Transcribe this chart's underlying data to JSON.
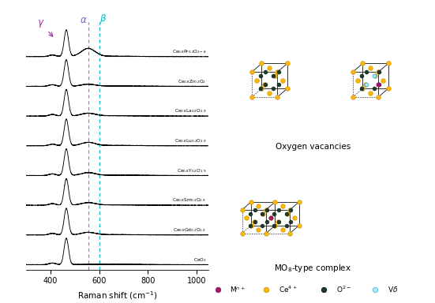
{
  "spectra_labels": [
    "Ce$_{0.8}$Pr$_{0.2}$O$_{2-\\delta}$",
    "Ce$_{0.8}$Zr$_{0.2}$O$_2$",
    "Ce$_{0.8}$La$_{0.2}$O$_{1.9}$",
    "Ce$_{0.8}$Lu$_{0.2}$O$_{1.9}$",
    "Ce$_{0.8}$Y$_{0.2}$O$_{1.9}$",
    "Ce$_{0.8}$Sm$_{0.2}$O$_{1.9}$",
    "Ce$_{0.8}$Gd$_{0.2}$O$_{1.9}$",
    "CeO$_2$"
  ],
  "xmin": 300,
  "xmax": 1050,
  "main_peak": 465,
  "alpha_peak": 555,
  "beta_peak": 600,
  "dashed_color_alpha": "#888888",
  "dashed_color_beta": "#00BBBB",
  "gamma_color": "#993399",
  "alpha_color": "#6666CC",
  "ce_color": "#FFB800",
  "o_color": "#1a3a2a",
  "m_color": "#AA1177",
  "vo_color": "#AAEEFF",
  "vo_edge_color": "#44AACC"
}
